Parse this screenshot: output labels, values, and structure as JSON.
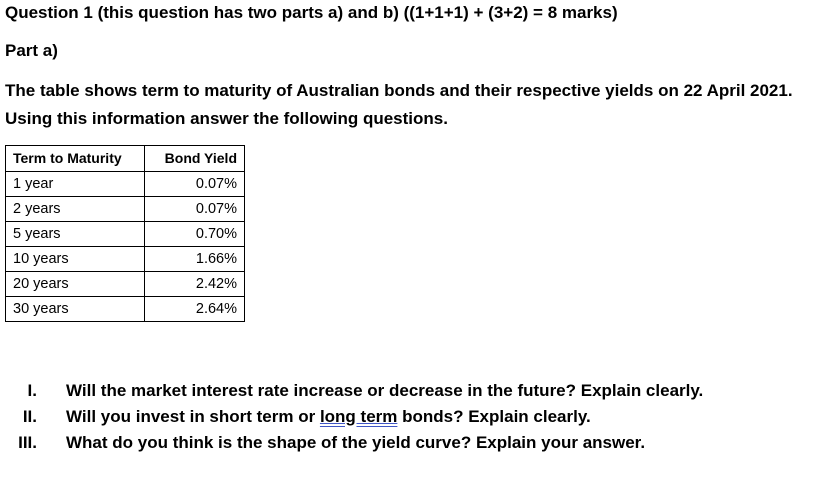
{
  "question_heading": "Question 1 (this question has two parts a) and b) ((1+1+1) + (3+2) = 8 marks)",
  "part_label": "Part a)",
  "intro_line_1": "The table shows term to maturity of Australian bonds and their respective yields on 22 April 2021.",
  "intro_line_2": "Using this information answer the following questions.",
  "table": {
    "headers": {
      "term": "Term to Maturity",
      "yield": "Bond Yield"
    },
    "rows": [
      {
        "term": "1 year",
        "yield": "0.07%"
      },
      {
        "term": "2 years",
        "yield": "0.07%"
      },
      {
        "term": "5 years",
        "yield": "0.70%"
      },
      {
        "term": "10 years",
        "yield": "1.66%"
      },
      {
        "term": "20 years",
        "yield": "2.42%"
      },
      {
        "term": "30 years",
        "yield": "2.64%"
      }
    ]
  },
  "questions": [
    {
      "num": "I.",
      "text": "Will the market interest rate increase or decrease in the future? Explain clearly."
    },
    {
      "num": "II.",
      "text_before": "Will you invest in short term or ",
      "flagged": "long term",
      "text_after": " bonds? Explain clearly."
    },
    {
      "num": "III.",
      "text": "What do you think is the shape of the yield curve? Explain your answer."
    }
  ]
}
